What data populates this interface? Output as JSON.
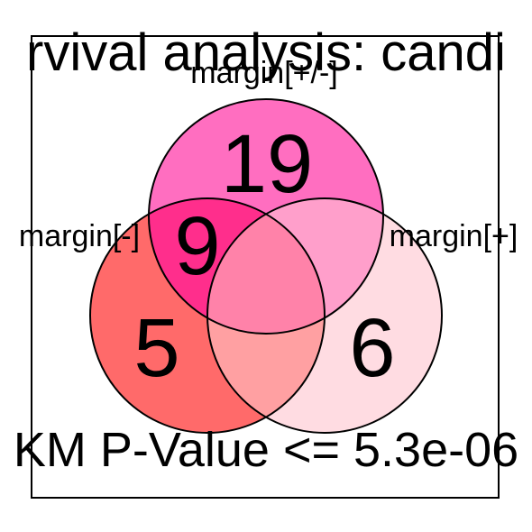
{
  "diagram": {
    "title": "rvival analysis: candi",
    "footer": "KM P-Value <= 5.3e-06",
    "sets": [
      {
        "label": "margin[+/-]",
        "color": "#ff6ec0"
      },
      {
        "label": "margin[-]",
        "color": "#ff6a6a"
      },
      {
        "label": "margin[+]",
        "color": "#ffdce2"
      }
    ],
    "regions": {
      "top_only": "19",
      "left_top": "9",
      "left_only": "5",
      "right_only": "6"
    },
    "region_colors": {
      "left_top": "#ff2e8c",
      "top_right": "#ff9fcb",
      "left_right": "#ffa0a2",
      "all_three": "#ff82a9"
    }
  }
}
